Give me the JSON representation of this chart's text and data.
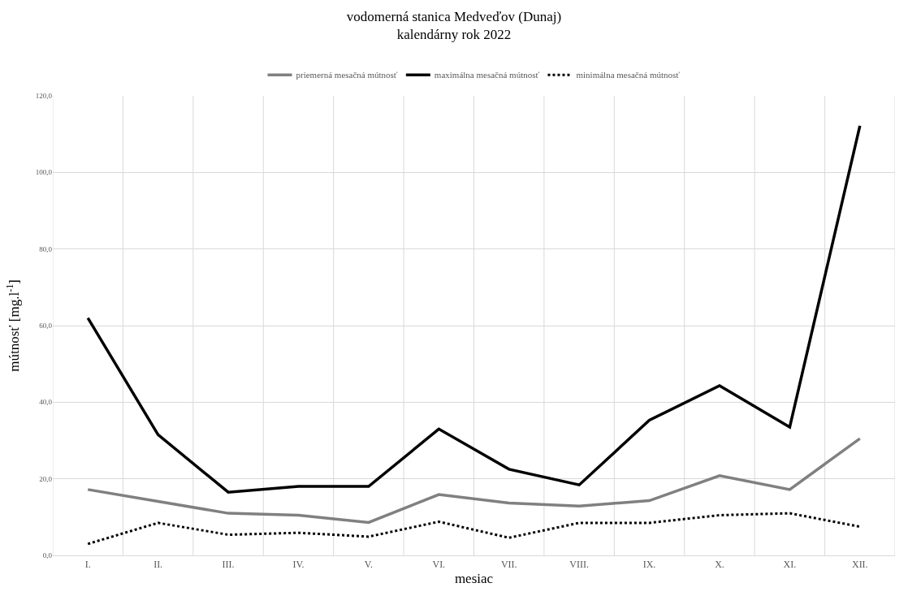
{
  "chart_data": {
    "type": "line",
    "title": "vodomerná stanica Medveďov (Dunaj)\nkalendárny rok 2022",
    "xlabel": "mesiac",
    "ylabel": "mútnosť [mg.l$^{-1}$]",
    "categories": [
      "I.",
      "II.",
      "III.",
      "IV.",
      "V.",
      "VI.",
      "VII.",
      "VIII.",
      "IX.",
      "X.",
      "XI.",
      "XII."
    ],
    "series": [
      {
        "name": "priemerná mesačná mútnosť",
        "color": "#808080",
        "line_style": "solid",
        "values": [
          17.2,
          14.1,
          11.0,
          10.5,
          8.6,
          15.9,
          13.7,
          12.9,
          14.3,
          20.8,
          17.2,
          30.5
        ]
      },
      {
        "name": "maximálna mesačná mútnosť",
        "color": "#000000",
        "line_style": "solid",
        "values": [
          62.0,
          31.5,
          16.5,
          18.0,
          18.0,
          33.0,
          22.5,
          18.4,
          35.3,
          44.3,
          33.5,
          112.2
        ]
      },
      {
        "name": "minimálna mesačná mútnosť",
        "color": "#000000",
        "line_style": "dotted",
        "values": [
          3.0,
          8.5,
          5.4,
          5.9,
          4.9,
          8.8,
          4.6,
          8.5,
          8.5,
          10.5,
          11.0,
          7.5
        ]
      }
    ],
    "ylim": [
      0,
      120
    ],
    "yticks": [
      {
        "value": 0,
        "label": "0,0"
      },
      {
        "value": 20,
        "label": "20,0"
      },
      {
        "value": 40,
        "label": "40,0"
      },
      {
        "value": 60,
        "label": "60,0"
      },
      {
        "value": 80,
        "label": "80,0"
      },
      {
        "value": 100,
        "label": "100,0"
      },
      {
        "value": 120,
        "label": "120,0"
      }
    ],
    "grid": true,
    "legend": "top",
    "marker": "none"
  }
}
